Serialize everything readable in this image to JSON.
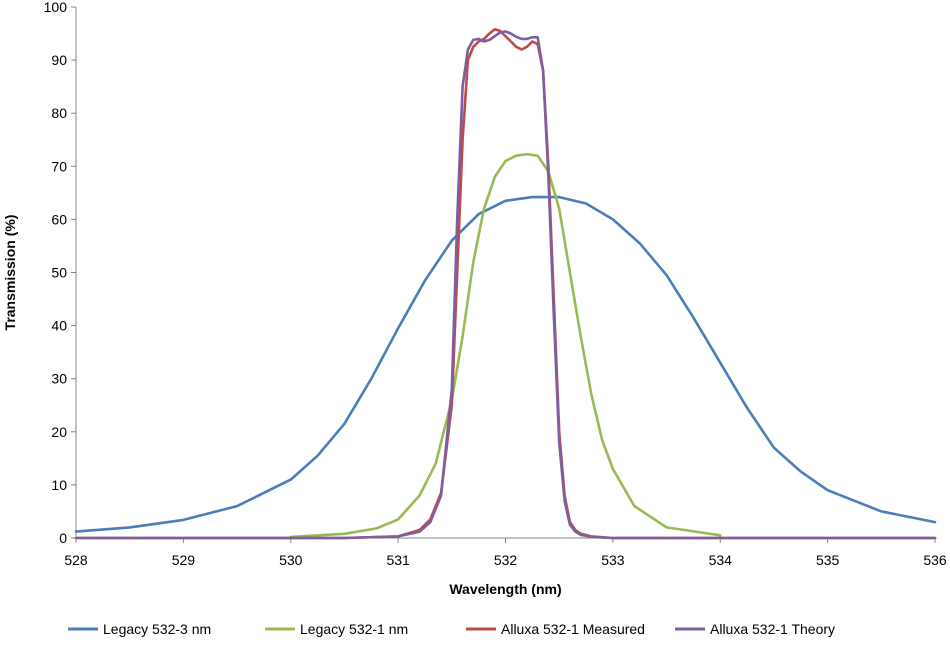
{
  "chart_data": {
    "type": "line",
    "title": "",
    "xlabel": "Wavelength (nm)",
    "ylabel": "Transmission (%)",
    "xlim": [
      528,
      536
    ],
    "ylim": [
      0,
      100
    ],
    "x_ticks": [
      528,
      529,
      530,
      531,
      532,
      533,
      534,
      535,
      536
    ],
    "y_ticks": [
      0,
      10,
      20,
      30,
      40,
      50,
      60,
      70,
      80,
      90,
      100
    ],
    "grid": false,
    "legend_position": "bottom",
    "series": [
      {
        "name": "Legacy 532-3 nm",
        "color": "#4a7ebb",
        "x": [
          528,
          528.5,
          529,
          529.5,
          530,
          530.25,
          530.5,
          530.75,
          531,
          531.25,
          531.5,
          531.75,
          532,
          532.25,
          532.5,
          532.75,
          533,
          533.25,
          533.5,
          533.75,
          534,
          534.25,
          534.5,
          534.75,
          535,
          535.5,
          536
        ],
        "y": [
          1.2,
          2.0,
          3.4,
          6.0,
          11.0,
          15.5,
          21.5,
          30.0,
          39.5,
          48.5,
          56.0,
          61.0,
          63.5,
          64.2,
          64.2,
          63.0,
          60.0,
          55.5,
          49.5,
          41.5,
          33.0,
          24.5,
          17.0,
          12.5,
          9.0,
          5.0,
          3.0
        ]
      },
      {
        "name": "Legacy 532-1 nm",
        "color": "#98b954",
        "x": [
          530,
          530.5,
          530.8,
          531,
          531.2,
          531.35,
          531.5,
          531.6,
          531.7,
          531.8,
          531.9,
          532,
          532.1,
          532.2,
          532.3,
          532.4,
          532.5,
          532.6,
          532.7,
          532.8,
          532.9,
          533,
          533.2,
          533.5,
          534
        ],
        "y": [
          0.2,
          0.8,
          1.8,
          3.5,
          8.0,
          14.0,
          26.0,
          38.0,
          52.0,
          62.0,
          68.0,
          71.0,
          72.0,
          72.3,
          72.0,
          69.0,
          62.0,
          50.0,
          38.0,
          27.0,
          18.5,
          13.0,
          6.0,
          2.0,
          0.5
        ]
      },
      {
        "name": "Alluxa 532-1 Measured",
        "color": "#be4b48",
        "x": [
          528,
          530.5,
          531,
          531.2,
          531.3,
          531.4,
          531.5,
          531.55,
          531.6,
          531.65,
          531.7,
          531.75,
          531.8,
          531.85,
          531.9,
          531.95,
          532,
          532.05,
          532.1,
          532.15,
          532.2,
          532.25,
          532.3,
          532.35,
          532.4,
          532.45,
          532.5,
          532.55,
          532.6,
          532.65,
          532.7,
          532.8,
          533,
          533.5,
          536
        ],
        "y": [
          0,
          0,
          0.3,
          1.5,
          3.5,
          8.5,
          25.0,
          50.0,
          75.0,
          90.0,
          92.5,
          93.5,
          94.0,
          95.0,
          95.8,
          95.5,
          94.5,
          93.5,
          92.5,
          92.0,
          92.5,
          93.5,
          93.0,
          88.0,
          70.0,
          45.0,
          20.0,
          8.0,
          3.0,
          1.5,
          0.8,
          0.3,
          0,
          0,
          0
        ]
      },
      {
        "name": "Alluxa 532-1 Theory",
        "color": "#7d5fa0",
        "x": [
          528,
          530.5,
          531,
          531.2,
          531.3,
          531.4,
          531.5,
          531.55,
          531.6,
          531.65,
          531.7,
          531.75,
          531.8,
          531.85,
          531.9,
          531.95,
          532,
          532.05,
          532.1,
          532.15,
          532.2,
          532.25,
          532.3,
          532.35,
          532.4,
          532.45,
          532.5,
          532.55,
          532.6,
          532.65,
          532.7,
          532.8,
          533,
          533.5,
          536
        ],
        "y": [
          0,
          0,
          0.3,
          1.2,
          3.0,
          8.0,
          28.0,
          60.0,
          85.0,
          92.0,
          93.8,
          94.0,
          93.5,
          93.8,
          94.5,
          95.2,
          95.4,
          95.0,
          94.4,
          94.0,
          94.0,
          94.3,
          94.3,
          88.0,
          68.0,
          42.0,
          18.0,
          7.0,
          2.5,
          1.2,
          0.6,
          0.2,
          0,
          0,
          0
        ]
      }
    ]
  }
}
